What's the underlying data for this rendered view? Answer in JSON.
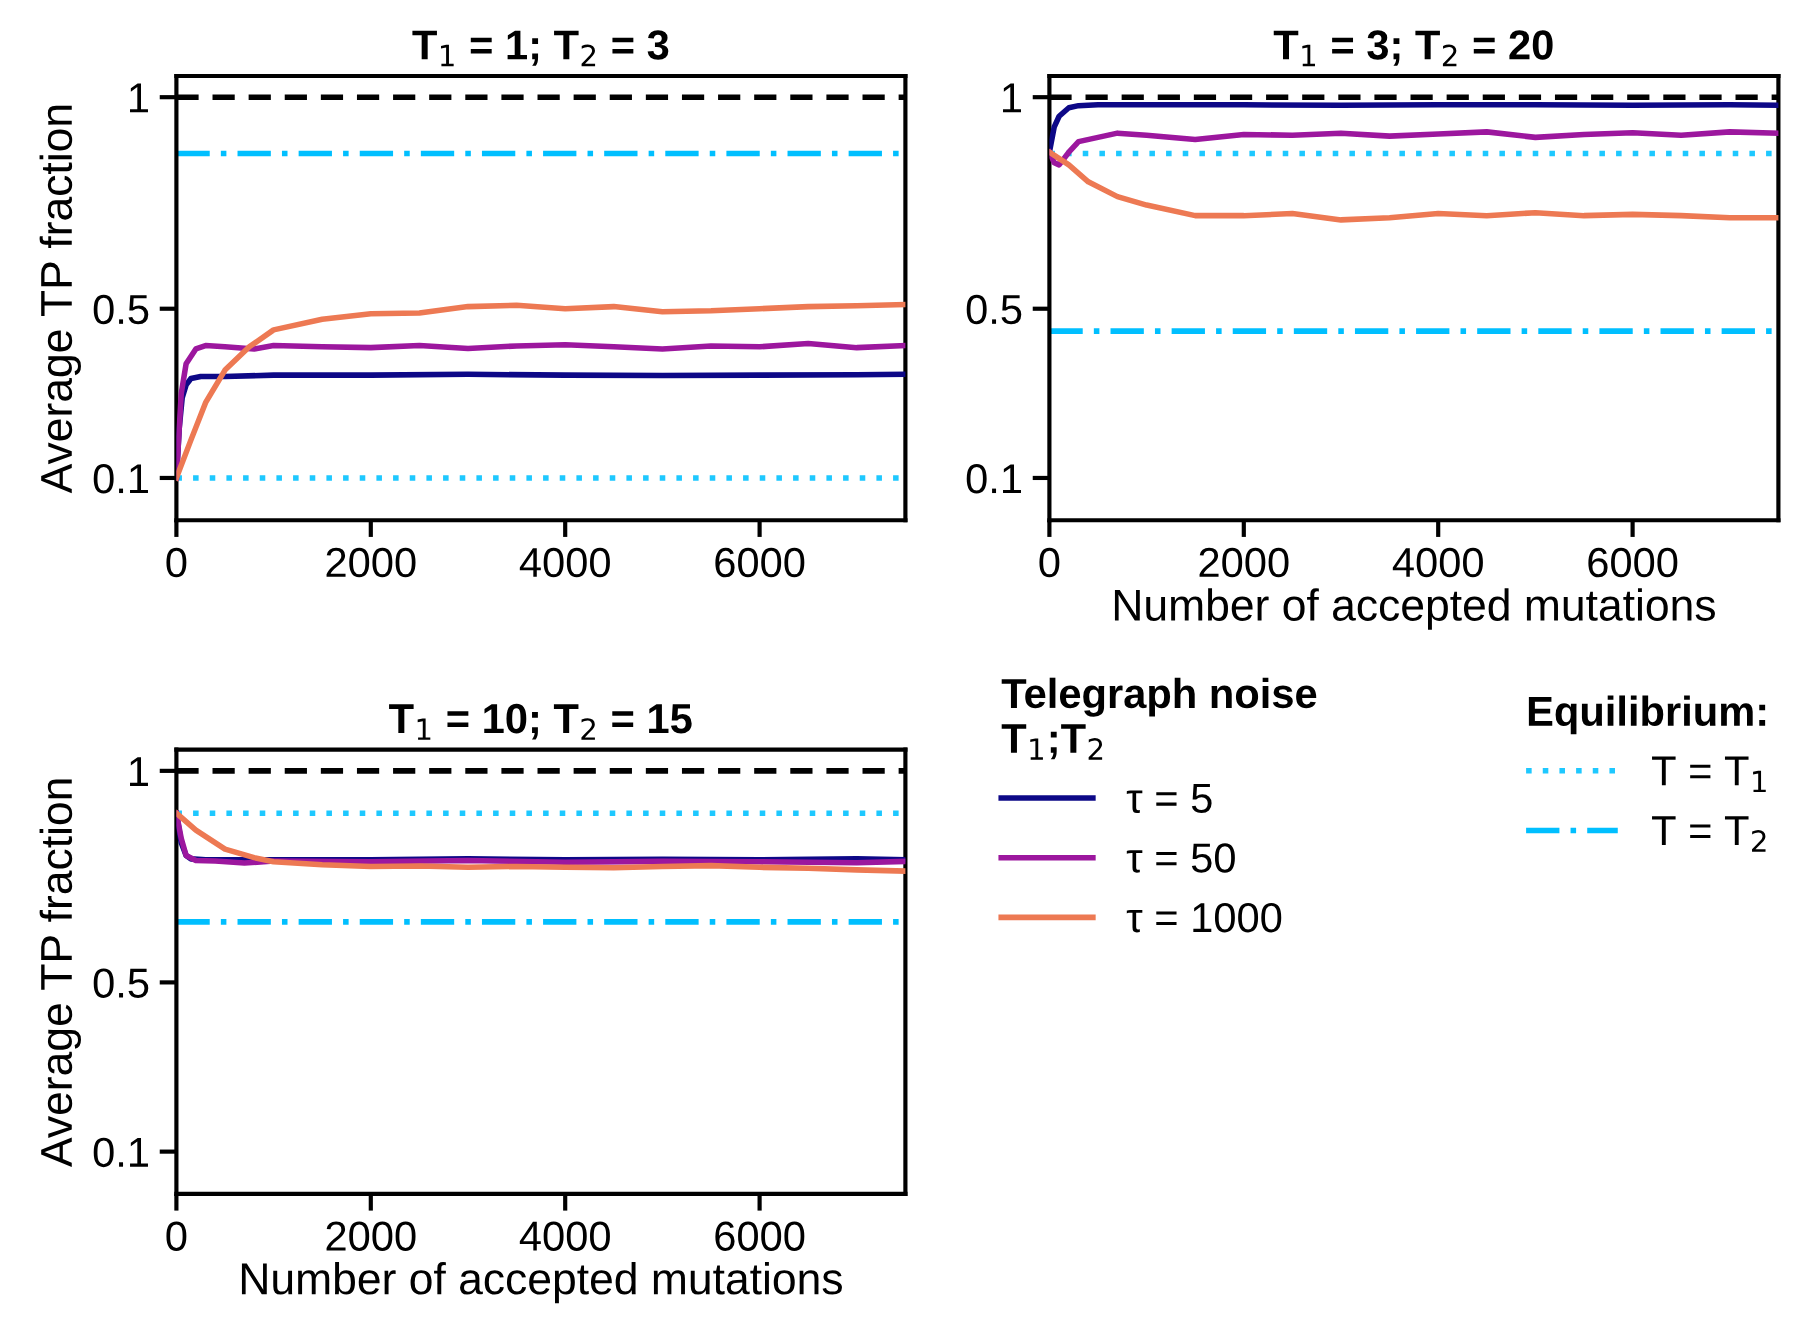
{
  "chart_data": [
    {
      "type": "line",
      "title": "T$_{1}$ = 1; T$_{2}$ = 3",
      "ylabel": "Average TP fraction",
      "xlim": [
        0,
        7500
      ],
      "ylim": [
        0,
        1.05
      ],
      "xticks": [
        0,
        2000,
        4000,
        6000
      ],
      "yticks": [
        0.1,
        0.5,
        1
      ],
      "legend": "bottom right",
      "legend_title": "Telegraph noise\nT$_{1}$;T$_{2}$",
      "annotations": [
        "Equilibrium:"
      ],
      "grid": false,
      "ref_lines": [
        {
          "axis": "y",
          "value": 1,
          "color": "#000000",
          "line_style": "dashed"
        },
        {
          "axis": "y",
          "value": 0.1,
          "label": "T = T$_{1}$",
          "color": "#1ec8ff",
          "line_style": "dotted"
        },
        {
          "axis": "y",
          "value": 0.867,
          "label": "T = T$_{2}$",
          "color": "#00bfff",
          "line_style": "dashdot"
        }
      ],
      "series": [
        {
          "name": "τ = 5",
          "color": "#0d0887",
          "x": [
            0,
            30,
            60,
            100,
            150,
            250,
            500,
            1000,
            2000,
            3000,
            4000,
            5000,
            6000,
            7000,
            7500
          ],
          "values": [
            0.1,
            0.22,
            0.29,
            0.32,
            0.335,
            0.34,
            0.34,
            0.343,
            0.343,
            0.345,
            0.343,
            0.342,
            0.343,
            0.344,
            0.345
          ]
        },
        {
          "name": "τ = 50",
          "color": "#9c179e",
          "x": [
            0,
            50,
            100,
            200,
            300,
            500,
            800,
            1000,
            1500,
            2000,
            2500,
            3000,
            3500,
            4000,
            4500,
            5000,
            5500,
            6000,
            6500,
            7000,
            7500
          ],
          "values": [
            0.1,
            0.3,
            0.37,
            0.405,
            0.413,
            0.41,
            0.405,
            0.413,
            0.41,
            0.408,
            0.413,
            0.406,
            0.412,
            0.415,
            0.41,
            0.405,
            0.412,
            0.41,
            0.418,
            0.408,
            0.413
          ]
        },
        {
          "name": "τ = 1000",
          "color": "#ed7953",
          "x": [
            0,
            150,
            300,
            500,
            750,
            1000,
            1500,
            2000,
            2500,
            3000,
            3500,
            4000,
            4500,
            5000,
            5500,
            6000,
            6500,
            7000,
            7500
          ],
          "values": [
            0.1,
            0.19,
            0.278,
            0.355,
            0.41,
            0.45,
            0.475,
            0.488,
            0.49,
            0.505,
            0.508,
            0.5,
            0.505,
            0.493,
            0.495,
            0.5,
            0.505,
            0.507,
            0.51
          ]
        }
      ]
    },
    {
      "type": "line",
      "title": "T$_{1}$ = 3; T$_{2}$ = 20",
      "xlabel": "Number of accepted mutations",
      "xlim": [
        0,
        7500
      ],
      "ylim": [
        0,
        1.05
      ],
      "xticks": [
        0,
        2000,
        4000,
        6000
      ],
      "yticks": [
        0.1,
        0.5,
        1
      ],
      "grid": false,
      "ref_lines": [
        {
          "axis": "y",
          "value": 1,
          "color": "#000000",
          "line_style": "dashed"
        },
        {
          "axis": "y",
          "value": 0.867,
          "color": "#1ec8ff",
          "line_style": "dotted"
        },
        {
          "axis": "y",
          "value": 0.447,
          "color": "#00bfff",
          "line_style": "dashdot"
        }
      ],
      "series": [
        {
          "color": "#0d0887",
          "x": [
            0,
            50,
            100,
            200,
            300,
            500,
            1000,
            2000,
            3000,
            4000,
            5000,
            6000,
            7000,
            7500
          ],
          "values": [
            0.87,
            0.93,
            0.955,
            0.975,
            0.98,
            0.982,
            0.982,
            0.982,
            0.981,
            0.982,
            0.982,
            0.981,
            0.982,
            0.981
          ]
        },
        {
          "color": "#9c179e",
          "x": [
            0,
            50,
            100,
            200,
            300,
            500,
            700,
            1000,
            1500,
            2000,
            2500,
            3000,
            3500,
            4000,
            4500,
            5000,
            5500,
            6000,
            6500,
            7000,
            7500
          ],
          "values": [
            0.87,
            0.845,
            0.84,
            0.87,
            0.895,
            0.905,
            0.915,
            0.91,
            0.9,
            0.912,
            0.91,
            0.915,
            0.908,
            0.913,
            0.918,
            0.905,
            0.912,
            0.916,
            0.91,
            0.918,
            0.915
          ]
        },
        {
          "color": "#ed7953",
          "x": [
            0,
            200,
            400,
            700,
            1000,
            1500,
            2000,
            2500,
            3000,
            3500,
            4000,
            4500,
            5000,
            5500,
            6000,
            6500,
            7000,
            7500
          ],
          "values": [
            0.87,
            0.84,
            0.8,
            0.765,
            0.745,
            0.72,
            0.72,
            0.725,
            0.71,
            0.715,
            0.725,
            0.72,
            0.727,
            0.72,
            0.723,
            0.72,
            0.715,
            0.715
          ]
        }
      ]
    },
    {
      "type": "line",
      "title": "T$_{1}$ = 10; T$_{2}$ = 15",
      "xlabel": "Number of accepted mutations",
      "ylabel": "Average TP fraction",
      "xlim": [
        0,
        7500
      ],
      "ylim": [
        0,
        1.05
      ],
      "xticks": [
        0,
        2000,
        4000,
        6000
      ],
      "yticks": [
        0.1,
        0.5,
        1
      ],
      "grid": false,
      "ref_lines": [
        {
          "axis": "y",
          "value": 1,
          "color": "#000000",
          "line_style": "dashed"
        },
        {
          "axis": "y",
          "value": 0.9,
          "color": "#1ec8ff",
          "line_style": "dotted"
        },
        {
          "axis": "y",
          "value": 0.643,
          "color": "#00bfff",
          "line_style": "dashdot"
        }
      ],
      "series": [
        {
          "color": "#0d0887",
          "x": [
            0,
            50,
            100,
            150,
            300,
            1000,
            2000,
            3000,
            4000,
            5000,
            6000,
            7000,
            7500
          ],
          "values": [
            0.9,
            0.83,
            0.8,
            0.792,
            0.79,
            0.79,
            0.79,
            0.792,
            0.79,
            0.791,
            0.79,
            0.792,
            0.79
          ]
        },
        {
          "color": "#9c179e",
          "x": [
            0,
            50,
            100,
            200,
            400,
            700,
            1000,
            2000,
            3000,
            4000,
            5000,
            6000,
            7000,
            7500
          ],
          "values": [
            0.9,
            0.84,
            0.8,
            0.788,
            0.787,
            0.782,
            0.787,
            0.785,
            0.788,
            0.784,
            0.786,
            0.785,
            0.783,
            0.786
          ]
        },
        {
          "color": "#ed7953",
          "x": [
            0,
            200,
            500,
            800,
            1000,
            1500,
            2000,
            2500,
            3000,
            3500,
            4000,
            4500,
            5000,
            5500,
            6000,
            6500,
            7000,
            7500
          ],
          "values": [
            0.9,
            0.86,
            0.815,
            0.795,
            0.785,
            0.778,
            0.774,
            0.775,
            0.772,
            0.774,
            0.772,
            0.771,
            0.774,
            0.776,
            0.772,
            0.77,
            0.766,
            0.763
          ]
        }
      ]
    }
  ]
}
